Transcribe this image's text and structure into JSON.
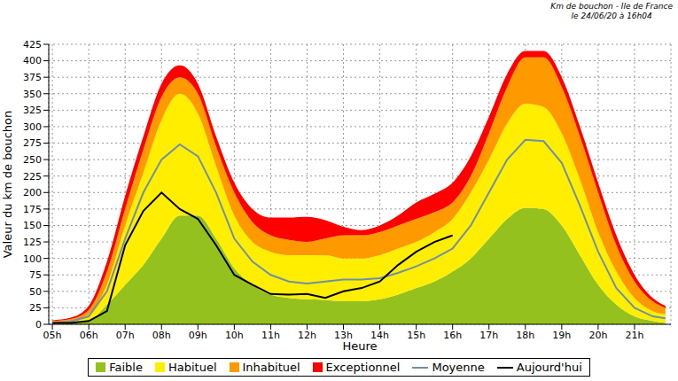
{
  "chart_data": {
    "type": "area",
    "title": "Km de bouchon - Ile de France",
    "subtitle": "le 24/06/20 à 16h04",
    "x_label": "Heure",
    "y_label": "Valeur du  km de bouchon",
    "stacked": true,
    "grid": true,
    "legend": "bottom",
    "xlim": [
      4.9,
      22
    ],
    "xticks": [
      {
        "value": 5,
        "label": "05h"
      },
      {
        "value": 6,
        "label": "06h"
      },
      {
        "value": 7,
        "label": "07h"
      },
      {
        "value": 8,
        "label": "08h"
      },
      {
        "value": 9,
        "label": "09h"
      },
      {
        "value": 10,
        "label": "10h"
      },
      {
        "value": 11,
        "label": "11h"
      },
      {
        "value": 12,
        "label": "12h"
      },
      {
        "value": 13,
        "label": "13h"
      },
      {
        "value": 14,
        "label": "14h"
      },
      {
        "value": 15,
        "label": "15h"
      },
      {
        "value": 16,
        "label": "16h"
      },
      {
        "value": 17,
        "label": "17h"
      },
      {
        "value": 18,
        "label": "18h"
      },
      {
        "value": 19,
        "label": "19h"
      },
      {
        "value": 20,
        "label": "20h"
      },
      {
        "value": 21,
        "label": "21h"
      }
    ],
    "ylim": [
      0,
      425
    ],
    "yticks": [
      0,
      25,
      50,
      75,
      100,
      125,
      150,
      175,
      200,
      225,
      250,
      275,
      300,
      325,
      350,
      375,
      400,
      425
    ],
    "x": [
      5,
      5.5,
      6,
      6.5,
      7,
      7.5,
      8,
      8.5,
      9,
      9.5,
      10,
      10.5,
      11,
      11.5,
      12,
      12.5,
      13,
      13.5,
      14,
      14.5,
      15,
      15.5,
      16,
      16.5,
      17,
      17.5,
      18,
      18.5,
      19,
      19.5,
      20,
      20.5,
      21,
      21.5,
      21.85
    ],
    "series": [
      {
        "name": "Faible",
        "type": "area",
        "color": "#95c11f",
        "values": [
          0,
          1,
          5,
          30,
          60,
          90,
          130,
          165,
          165,
          130,
          85,
          60,
          45,
          40,
          38,
          37,
          35,
          35,
          38,
          45,
          55,
          65,
          80,
          100,
          130,
          160,
          177,
          175,
          150,
          105,
          60,
          30,
          12,
          5,
          2
        ]
      },
      {
        "name": "Habituel",
        "type": "area",
        "color": "#ffee00",
        "values": [
          3,
          4,
          10,
          30,
          90,
          140,
          180,
          185,
          155,
          110,
          80,
          65,
          65,
          65,
          67,
          68,
          65,
          65,
          67,
          70,
          70,
          75,
          80,
          100,
          120,
          145,
          158,
          155,
          140,
          115,
          80,
          50,
          28,
          15,
          13
        ]
      },
      {
        "name": "Inhabituel",
        "type": "area",
        "color": "#ff9900",
        "values": [
          2,
          3,
          7,
          20,
          25,
          35,
          35,
          25,
          30,
          30,
          35,
          30,
          25,
          23,
          20,
          25,
          35,
          35,
          35,
          35,
          35,
          30,
          25,
          25,
          40,
          55,
          70,
          75,
          70,
          65,
          60,
          40,
          25,
          15,
          10
        ]
      },
      {
        "name": "Exceptionnel",
        "type": "area",
        "color": "#ff0000",
        "values": [
          1,
          2,
          6,
          15,
          20,
          20,
          20,
          18,
          15,
          15,
          15,
          20,
          27,
          34,
          38,
          28,
          13,
          8,
          10,
          15,
          25,
          28,
          30,
          30,
          25,
          20,
          10,
          10,
          15,
          15,
          15,
          15,
          10,
          5,
          3
        ]
      },
      {
        "name": "Moyenne",
        "type": "line",
        "color": "#6f8fab",
        "values": [
          2,
          4,
          12,
          50,
          130,
          200,
          250,
          273,
          255,
          200,
          130,
          95,
          75,
          65,
          62,
          65,
          68,
          68,
          70,
          78,
          88,
          100,
          115,
          150,
          200,
          250,
          280,
          278,
          245,
          180,
          110,
          55,
          25,
          12,
          9
        ]
      },
      {
        "name": "Aujourd'hui",
        "type": "line",
        "color": "#000000",
        "values": [
          2,
          2,
          5,
          20,
          120,
          172,
          200,
          175,
          160,
          120,
          75,
          60,
          46,
          45,
          46,
          40,
          50,
          55,
          65,
          90,
          110,
          125,
          135,
          null,
          null,
          null,
          null,
          null,
          null,
          null,
          null,
          null,
          null,
          null,
          null
        ]
      }
    ]
  }
}
